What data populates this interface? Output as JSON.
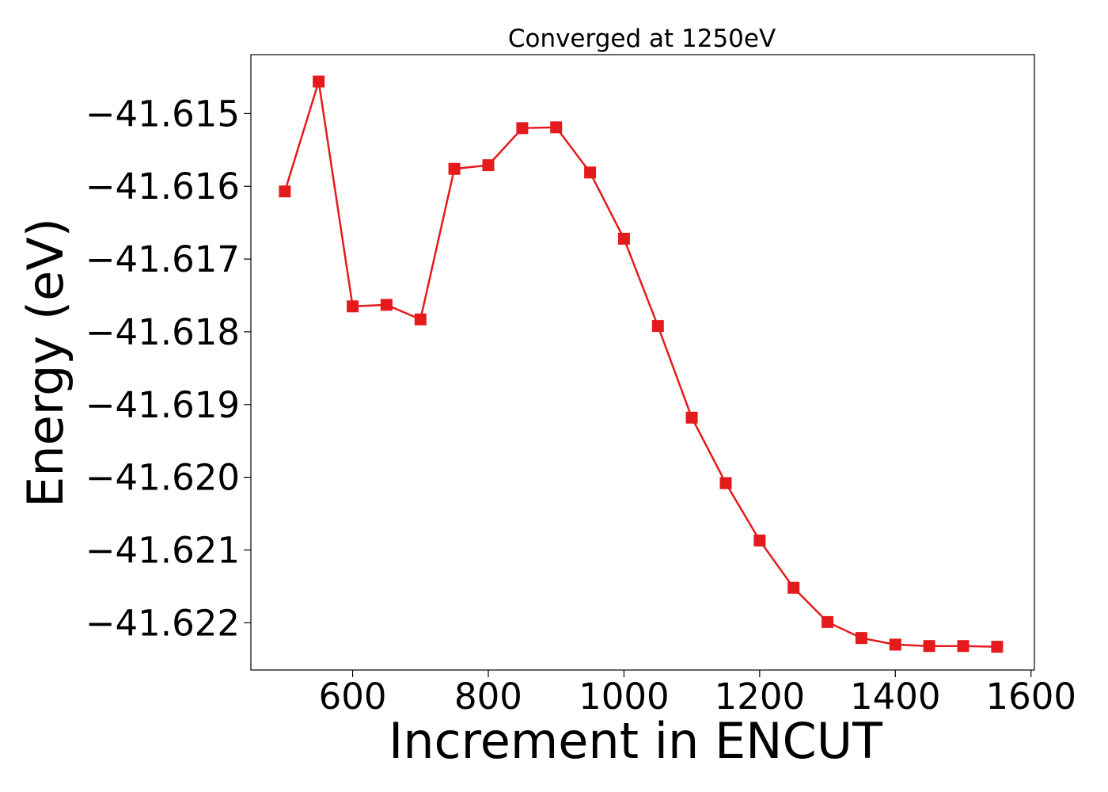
{
  "chart_data": {
    "type": "line",
    "title": "Converged at 1250eV",
    "xlabel": "Increment in ENCUT",
    "ylabel": "Energy (eV)",
    "xlim": [
      450,
      1605
    ],
    "ylim": [
      -41.62265,
      -41.61419
    ],
    "x_ticks": [
      600,
      800,
      1000,
      1200,
      1400,
      1600
    ],
    "x_tick_labels": [
      "600",
      "800",
      "1000",
      "1200",
      "1400",
      "1600"
    ],
    "y_ticks": [
      -41.615,
      -41.616,
      -41.617,
      -41.618,
      -41.619,
      -41.62,
      -41.621,
      -41.622
    ],
    "y_tick_labels": [
      "−41.615",
      "−41.616",
      "−41.617",
      "−41.618",
      "−41.619",
      "−41.620",
      "−41.621",
      "−41.622"
    ],
    "grid": false,
    "series": [
      {
        "color": "#e41a1c",
        "marker": "square",
        "x": [
          500,
          550,
          600,
          650,
          700,
          750,
          800,
          850,
          900,
          950,
          1000,
          1050,
          1100,
          1150,
          1200,
          1250,
          1300,
          1350,
          1400,
          1450,
          1500,
          1550
        ],
        "y": [
          -41.61607,
          -41.61456,
          -41.61765,
          -41.61763,
          -41.61783,
          -41.61576,
          -41.61571,
          -41.6152,
          -41.61519,
          -41.61581,
          -41.61672,
          -41.61792,
          -41.61918,
          -41.62008,
          -41.62087,
          -41.62152,
          -41.62199,
          -41.62221,
          -41.6223,
          -41.62232,
          -41.62232,
          -41.62233
        ]
      }
    ]
  }
}
